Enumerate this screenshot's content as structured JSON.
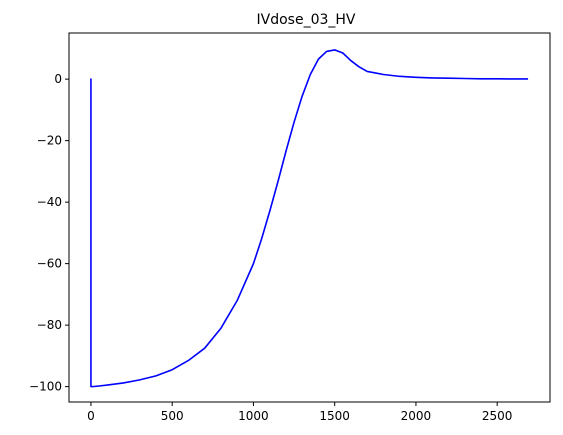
{
  "chart_data": {
    "type": "line",
    "title": "IVdose_03_HV",
    "xlabel": "",
    "ylabel": "",
    "xlim": [
      -135,
      2825
    ],
    "ylim": [
      -105,
      15
    ],
    "grid": false,
    "line_color": "#0000ff",
    "xticks": [
      0,
      500,
      1000,
      1500,
      2000,
      2500
    ],
    "yticks": [
      0,
      -20,
      -40,
      -60,
      -80,
      -100
    ],
    "xtick_labels": [
      "0",
      "500",
      "1000",
      "1500",
      "2000",
      "2500"
    ],
    "ytick_labels": [
      "0",
      "−20",
      "−40",
      "−60",
      "−80",
      "−100"
    ],
    "series": [
      {
        "values_x": [
          -5,
          0,
          0,
          10,
          50,
          100,
          200,
          300,
          400,
          500,
          600,
          700,
          800,
          900,
          1000,
          1050,
          1100,
          1150,
          1200,
          1250,
          1300,
          1350,
          1400,
          1450,
          1500,
          1550,
          1600,
          1650,
          1700,
          1800,
          1900,
          2000,
          2100,
          2200,
          2300,
          2400,
          2500,
          2600,
          2690
        ],
        "values_y": [
          0,
          0,
          -100,
          -100,
          -99.8,
          -99.5,
          -98.8,
          -97.8,
          -96.5,
          -94.5,
          -91.5,
          -87.5,
          -81,
          -72,
          -60,
          -52,
          -43,
          -33.5,
          -23.5,
          -14,
          -5.5,
          1.5,
          6.5,
          9,
          9.5,
          8.5,
          6,
          4,
          2.5,
          1.5,
          0.9,
          0.6,
          0.4,
          0.3,
          0.2,
          0.1,
          0.1,
          0.05,
          0.05
        ]
      }
    ]
  }
}
